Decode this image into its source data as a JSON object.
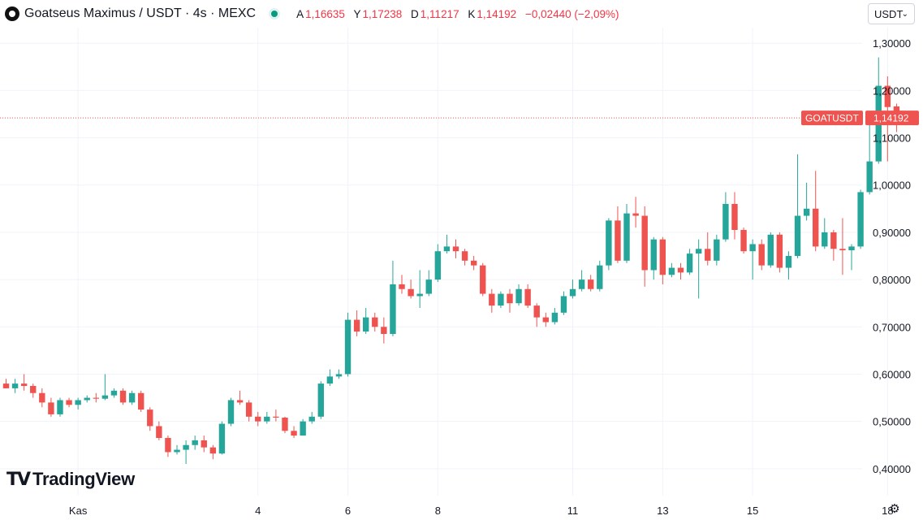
{
  "header": {
    "title": "Goatseus Maximus / USDT · 4s · MEXC",
    "open_label": "A",
    "open_value": "1,16635",
    "high_label": "Y",
    "high_value": "1,17238",
    "low_label": "D",
    "low_value": "1,11217",
    "close_label": "K",
    "close_value": "1,14192",
    "change": "−0,02440 (−2,09%)"
  },
  "currency_select": {
    "value": "USDT",
    "caret": "⌄"
  },
  "brand": {
    "mark": "TV",
    "name": "TradingView"
  },
  "price_label": {
    "symbol": "GOATUSDT",
    "price": "1,14192"
  },
  "colors": {
    "up": "#26a69a",
    "down": "#ef5350",
    "grid": "#f0f3fa",
    "axis_text": "#131722",
    "label_bg": "#ef5350"
  },
  "chart_data": {
    "type": "candlestick",
    "ylim": [
      0.343,
      1.333
    ],
    "y_ticks": [
      {
        "value": 1.3,
        "label": "1,30000"
      },
      {
        "value": 1.2,
        "label": "1,20000"
      },
      {
        "value": 1.1,
        "label": "1,10000"
      },
      {
        "value": 1.0,
        "label": "1,00000"
      },
      {
        "value": 0.9,
        "label": "0,90000"
      },
      {
        "value": 0.8,
        "label": "0,80000"
      },
      {
        "value": 0.7,
        "label": "0,70000"
      },
      {
        "value": 0.6,
        "label": "0,60000"
      },
      {
        "value": 0.5,
        "label": "0,50000"
      },
      {
        "value": 0.4,
        "label": "0,40000"
      }
    ],
    "x_ticks": [
      {
        "index": 8,
        "label": "Kas"
      },
      {
        "index": 28,
        "label": "4"
      },
      {
        "index": 38,
        "label": "6"
      },
      {
        "index": 48,
        "label": "8"
      },
      {
        "index": 63,
        "label": "11"
      },
      {
        "index": 73,
        "label": "13"
      },
      {
        "index": 83,
        "label": "15"
      },
      {
        "index": 98,
        "label": "18"
      }
    ],
    "candles": [
      [
        0.58,
        0.57,
        0.59,
        0.57
      ],
      [
        0.57,
        0.58,
        0.59,
        0.56
      ],
      [
        0.58,
        0.575,
        0.6,
        0.565
      ],
      [
        0.575,
        0.56,
        0.58,
        0.55
      ],
      [
        0.56,
        0.54,
        0.57,
        0.53
      ],
      [
        0.54,
        0.515,
        0.55,
        0.51
      ],
      [
        0.515,
        0.545,
        0.55,
        0.51
      ],
      [
        0.545,
        0.535,
        0.55,
        0.53
      ],
      [
        0.535,
        0.545,
        0.55,
        0.525
      ],
      [
        0.545,
        0.55,
        0.555,
        0.54
      ],
      [
        0.55,
        0.548,
        0.56,
        0.54
      ],
      [
        0.548,
        0.555,
        0.6,
        0.545
      ],
      [
        0.555,
        0.565,
        0.57,
        0.55
      ],
      [
        0.565,
        0.54,
        0.57,
        0.535
      ],
      [
        0.54,
        0.56,
        0.565,
        0.535
      ],
      [
        0.56,
        0.525,
        0.565,
        0.52
      ],
      [
        0.525,
        0.49,
        0.53,
        0.48
      ],
      [
        0.49,
        0.465,
        0.5,
        0.46
      ],
      [
        0.465,
        0.435,
        0.47,
        0.425
      ],
      [
        0.435,
        0.44,
        0.45,
        0.43
      ],
      [
        0.44,
        0.45,
        0.46,
        0.41
      ],
      [
        0.45,
        0.46,
        0.47,
        0.44
      ],
      [
        0.46,
        0.445,
        0.47,
        0.435
      ],
      [
        0.445,
        0.432,
        0.45,
        0.42
      ],
      [
        0.432,
        0.495,
        0.5,
        0.43
      ],
      [
        0.495,
        0.545,
        0.55,
        0.49
      ],
      [
        0.545,
        0.54,
        0.565,
        0.535
      ],
      [
        0.54,
        0.51,
        0.545,
        0.5
      ],
      [
        0.51,
        0.5,
        0.52,
        0.49
      ],
      [
        0.5,
        0.51,
        0.52,
        0.495
      ],
      [
        0.51,
        0.508,
        0.525,
        0.5
      ],
      [
        0.508,
        0.48,
        0.51,
        0.475
      ],
      [
        0.48,
        0.47,
        0.49,
        0.465
      ],
      [
        0.47,
        0.5,
        0.505,
        0.47
      ],
      [
        0.5,
        0.51,
        0.52,
        0.495
      ],
      [
        0.51,
        0.58,
        0.585,
        0.505
      ],
      [
        0.58,
        0.595,
        0.61,
        0.575
      ],
      [
        0.595,
        0.6,
        0.61,
        0.59
      ],
      [
        0.6,
        0.715,
        0.73,
        0.595
      ],
      [
        0.715,
        0.69,
        0.735,
        0.68
      ],
      [
        0.69,
        0.72,
        0.74,
        0.685
      ],
      [
        0.72,
        0.7,
        0.73,
        0.69
      ],
      [
        0.7,
        0.685,
        0.72,
        0.665
      ],
      [
        0.685,
        0.79,
        0.84,
        0.68
      ],
      [
        0.79,
        0.78,
        0.81,
        0.77
      ],
      [
        0.78,
        0.765,
        0.8,
        0.76
      ],
      [
        0.765,
        0.77,
        0.82,
        0.74
      ],
      [
        0.77,
        0.8,
        0.82,
        0.765
      ],
      [
        0.8,
        0.86,
        0.875,
        0.795
      ],
      [
        0.86,
        0.87,
        0.895,
        0.855
      ],
      [
        0.87,
        0.86,
        0.885,
        0.845
      ],
      [
        0.86,
        0.84,
        0.865,
        0.83
      ],
      [
        0.84,
        0.83,
        0.85,
        0.82
      ],
      [
        0.83,
        0.77,
        0.835,
        0.765
      ],
      [
        0.77,
        0.745,
        0.78,
        0.73
      ],
      [
        0.745,
        0.77,
        0.775,
        0.74
      ],
      [
        0.77,
        0.75,
        0.78,
        0.73
      ],
      [
        0.75,
        0.78,
        0.79,
        0.745
      ],
      [
        0.78,
        0.745,
        0.79,
        0.74
      ],
      [
        0.745,
        0.72,
        0.75,
        0.7
      ],
      [
        0.72,
        0.71,
        0.73,
        0.7
      ],
      [
        0.71,
        0.73,
        0.74,
        0.705
      ],
      [
        0.73,
        0.765,
        0.775,
        0.725
      ],
      [
        0.765,
        0.78,
        0.8,
        0.76
      ],
      [
        0.78,
        0.8,
        0.82,
        0.775
      ],
      [
        0.8,
        0.78,
        0.81,
        0.775
      ],
      [
        0.78,
        0.83,
        0.84,
        0.775
      ],
      [
        0.83,
        0.925,
        0.93,
        0.82
      ],
      [
        0.925,
        0.84,
        0.955,
        0.835
      ],
      [
        0.84,
        0.94,
        0.96,
        0.835
      ],
      [
        0.94,
        0.935,
        0.975,
        0.91
      ],
      [
        0.935,
        0.82,
        0.955,
        0.785
      ],
      [
        0.82,
        0.885,
        0.89,
        0.8
      ],
      [
        0.885,
        0.81,
        0.89,
        0.79
      ],
      [
        0.81,
        0.825,
        0.835,
        0.805
      ],
      [
        0.825,
        0.815,
        0.835,
        0.8
      ],
      [
        0.815,
        0.855,
        0.865,
        0.81
      ],
      [
        0.855,
        0.865,
        0.885,
        0.76
      ],
      [
        0.865,
        0.84,
        0.9,
        0.83
      ],
      [
        0.84,
        0.885,
        0.895,
        0.83
      ],
      [
        0.885,
        0.96,
        0.985,
        0.88
      ],
      [
        0.96,
        0.905,
        0.985,
        0.885
      ],
      [
        0.905,
        0.86,
        0.91,
        0.855
      ],
      [
        0.86,
        0.875,
        0.885,
        0.8
      ],
      [
        0.875,
        0.83,
        0.885,
        0.82
      ],
      [
        0.83,
        0.895,
        0.9,
        0.825
      ],
      [
        0.895,
        0.825,
        0.9,
        0.815
      ],
      [
        0.825,
        0.85,
        0.86,
        0.8
      ],
      [
        0.85,
        0.935,
        1.065,
        0.845
      ],
      [
        0.935,
        0.95,
        1.005,
        0.925
      ],
      [
        0.95,
        0.87,
        1.03,
        0.86
      ],
      [
        0.87,
        0.9,
        0.93,
        0.865
      ],
      [
        0.9,
        0.865,
        0.905,
        0.84
      ],
      [
        0.865,
        0.862,
        0.93,
        0.81
      ],
      [
        0.862,
        0.87,
        0.875,
        0.82
      ],
      [
        0.87,
        0.985,
        0.99,
        0.865
      ],
      [
        0.985,
        1.05,
        1.14,
        0.98
      ],
      [
        1.05,
        1.21,
        1.27,
        1.045
      ],
      [
        1.21,
        1.165,
        1.23,
        1.05
      ],
      [
        1.16635,
        1.14192,
        1.17238,
        1.11217
      ]
    ]
  }
}
